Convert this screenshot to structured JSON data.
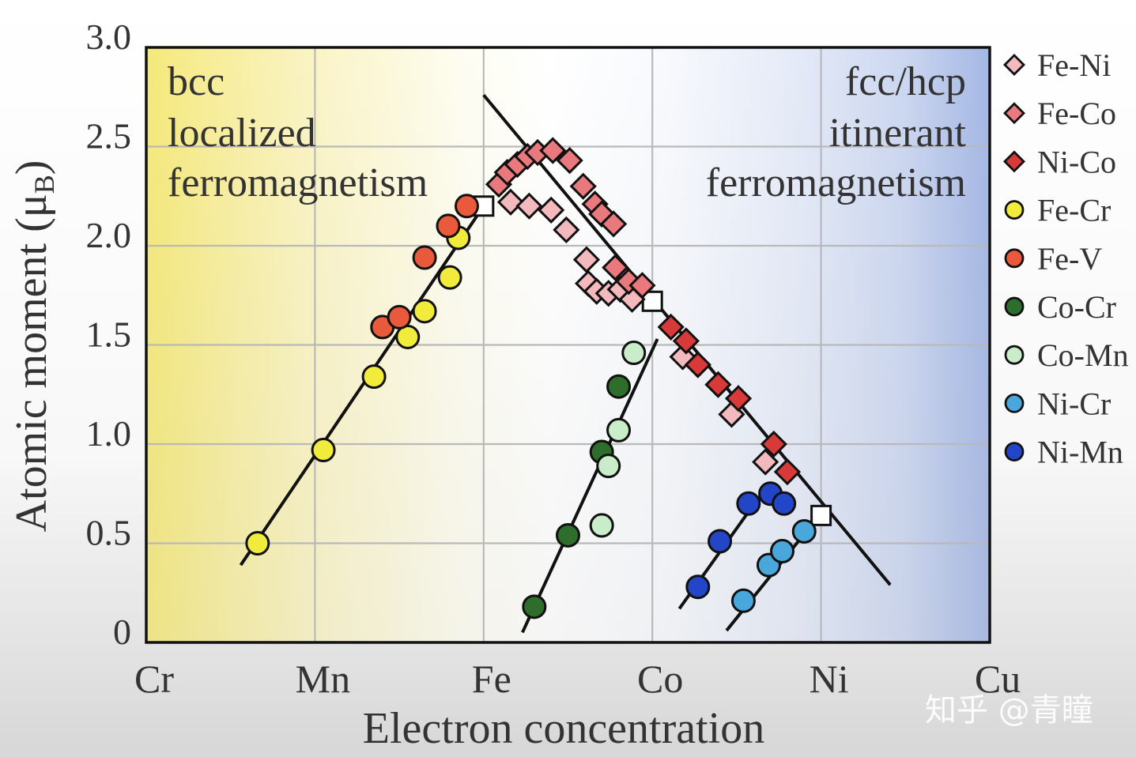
{
  "chart_data": {
    "type": "scatter",
    "title": "",
    "xlabel": "Electron concentration",
    "ylabel": {
      "text": "Atomic moment (μ",
      "subscript": "B",
      "suffix": ")"
    },
    "xlim": [
      6,
      11
    ],
    "ylim": [
      0,
      3
    ],
    "grid": true,
    "legend_position": "right",
    "x_ticks": [
      {
        "label": "Cr",
        "value": 6
      },
      {
        "label": "Mn",
        "value": 7
      },
      {
        "label": "Fe",
        "value": 8
      },
      {
        "label": "Co",
        "value": 9
      },
      {
        "label": "Ni",
        "value": 10
      },
      {
        "label": "Cu",
        "value": 11
      }
    ],
    "y_ticks": [
      {
        "label": "0",
        "value": 0
      },
      {
        "label": "0.5",
        "value": 0.5
      },
      {
        "label": "1.0",
        "value": 1.0
      },
      {
        "label": "1.5",
        "value": 1.5
      },
      {
        "label": "2.0",
        "value": 2.0
      },
      {
        "label": "2.5",
        "value": 2.5
      },
      {
        "label": "3.0",
        "value": 3.0
      }
    ],
    "annotations": {
      "left": [
        "bcc",
        "localized",
        "ferromagnetism"
      ],
      "right": [
        "fcc/hcp",
        "itinerant",
        "ferromagnetism"
      ]
    },
    "series": [
      {
        "name": "Fe-Ni",
        "marker": "diamond",
        "color": "#f3b9bc",
        "points": [
          [
            8.16,
            2.22
          ],
          [
            8.27,
            2.2
          ],
          [
            8.4,
            2.18
          ],
          [
            8.49,
            2.08
          ],
          [
            8.61,
            1.93
          ],
          [
            8.62,
            1.81
          ],
          [
            8.67,
            1.77
          ],
          [
            8.74,
            1.76
          ],
          [
            8.81,
            1.78
          ],
          [
            8.88,
            1.73
          ],
          [
            9.18,
            1.44
          ],
          [
            9.47,
            1.15
          ],
          [
            9.67,
            0.91
          ]
        ]
      },
      {
        "name": "Fe-Co",
        "marker": "diamond",
        "color": "#e9797c",
        "points": [
          [
            8.09,
            2.31
          ],
          [
            8.14,
            2.37
          ],
          [
            8.2,
            2.41
          ],
          [
            8.26,
            2.45
          ],
          [
            8.32,
            2.47
          ],
          [
            8.41,
            2.48
          ],
          [
            8.51,
            2.43
          ],
          [
            8.59,
            2.3
          ],
          [
            8.66,
            2.21
          ],
          [
            8.7,
            2.16
          ],
          [
            8.77,
            2.11
          ],
          [
            8.78,
            1.89
          ],
          [
            8.86,
            1.82
          ],
          [
            8.94,
            1.8
          ]
        ]
      },
      {
        "name": "Ni-Co",
        "marker": "diamond",
        "color": "#d83a3a",
        "points": [
          [
            9.11,
            1.59
          ],
          [
            9.2,
            1.52
          ],
          [
            9.27,
            1.4
          ],
          [
            9.39,
            1.3
          ],
          [
            9.51,
            1.23
          ],
          [
            9.72,
            1.0
          ],
          [
            9.8,
            0.86
          ]
        ]
      },
      {
        "name": "Fe-Cr",
        "marker": "circle",
        "color": "#f1ec3c",
        "points": [
          [
            6.66,
            0.5
          ],
          [
            7.05,
            0.97
          ],
          [
            7.35,
            1.34
          ],
          [
            7.55,
            1.54
          ],
          [
            7.65,
            1.67
          ],
          [
            7.8,
            1.84
          ],
          [
            7.85,
            2.04
          ]
        ]
      },
      {
        "name": "Fe-V",
        "marker": "circle",
        "color": "#e85a3b",
        "points": [
          [
            7.4,
            1.59
          ],
          [
            7.5,
            1.64
          ],
          [
            7.65,
            1.94
          ],
          [
            7.79,
            2.1
          ],
          [
            7.9,
            2.2
          ]
        ]
      },
      {
        "name": "Co-Cr",
        "marker": "circle",
        "color": "#2f6d2c",
        "points": [
          [
            8.3,
            0.18
          ],
          [
            8.5,
            0.54
          ],
          [
            8.7,
            0.96
          ],
          [
            8.8,
            1.29
          ]
        ]
      },
      {
        "name": "Co-Mn",
        "marker": "circle",
        "color": "#c9edc9",
        "points": [
          [
            8.7,
            0.59
          ],
          [
            8.74,
            0.89
          ],
          [
            8.8,
            1.07
          ],
          [
            8.89,
            1.46
          ]
        ]
      },
      {
        "name": "Ni-Cr",
        "marker": "circle",
        "color": "#4aa7dc",
        "points": [
          [
            9.54,
            0.21
          ],
          [
            9.69,
            0.39
          ],
          [
            9.77,
            0.46
          ],
          [
            9.9,
            0.56
          ]
        ]
      },
      {
        "name": "Ni-Mn",
        "marker": "circle",
        "color": "#2346c9",
        "points": [
          [
            9.27,
            0.28
          ],
          [
            9.4,
            0.51
          ],
          [
            9.57,
            0.7
          ],
          [
            9.7,
            0.75
          ],
          [
            9.78,
            0.7
          ]
        ]
      }
    ],
    "pure_elements": {
      "marker": "square",
      "color": "#ffffff",
      "points": [
        [
          8.0,
          2.2
        ],
        [
          9.0,
          1.72
        ],
        [
          10.0,
          0.64
        ]
      ]
    },
    "fit_lines": [
      [
        [
          6.56,
          0.39
        ],
        [
          8.0,
          2.2
        ]
      ],
      [
        [
          8.0,
          2.76
        ],
        [
          10.41,
          0.29
        ]
      ],
      [
        [
          8.23,
          0.05
        ],
        [
          9.03,
          1.53
        ]
      ],
      [
        [
          9.16,
          0.17
        ],
        [
          9.63,
          0.73
        ]
      ],
      [
        [
          9.44,
          0.06
        ],
        [
          9.96,
          0.61
        ]
      ]
    ]
  },
  "watermark": "知乎 @青瞳"
}
